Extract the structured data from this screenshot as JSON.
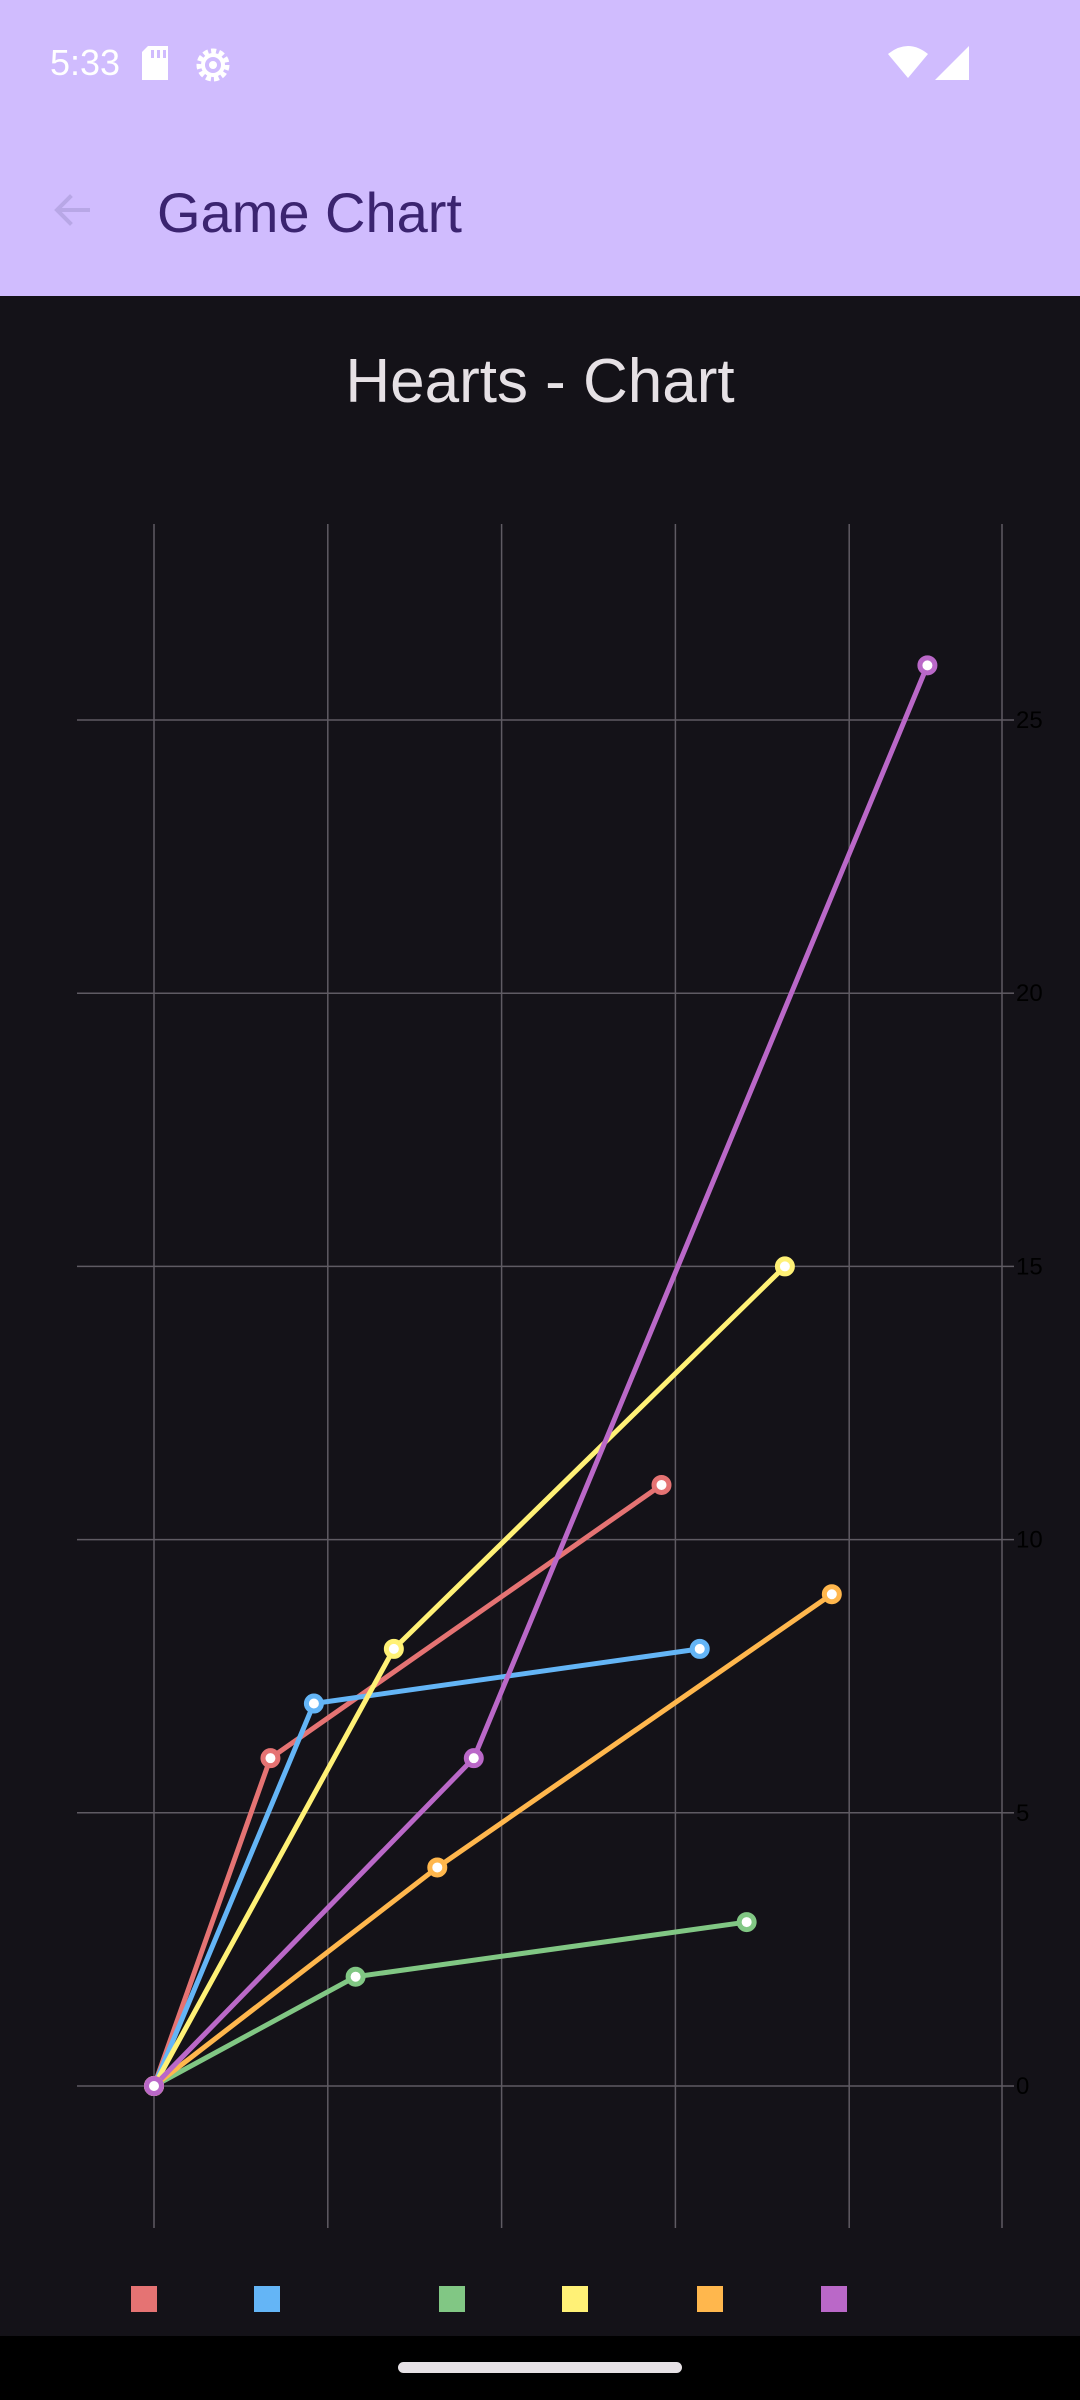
{
  "status_bar": {
    "time": "5:33",
    "icons": [
      "sd-card-icon",
      "gear-icon",
      "wifi-icon",
      "signal-icon"
    ]
  },
  "app_bar": {
    "title": "Game Chart",
    "back_icon": "arrow-back-icon",
    "background": "#d0bcfe",
    "title_color": "#3b2470"
  },
  "chart_data": {
    "type": "line",
    "title": "Hearts - Chart",
    "xlabel": "",
    "ylabel": "",
    "xlim": [
      0,
      5
    ],
    "ylim": [
      -1.2,
      28.4
    ],
    "y_ticks": [
      0,
      5,
      10,
      15,
      20,
      25
    ],
    "y_axis_side": "right",
    "grid": true,
    "legend_placement": "bottom",
    "series": [
      {
        "color": "#e57373",
        "points": [
          [
            0,
            0
          ],
          [
            0.67,
            6
          ],
          [
            2.92,
            11
          ]
        ]
      },
      {
        "color": "#64b5f6",
        "points": [
          [
            0,
            0
          ],
          [
            0.92,
            7
          ],
          [
            3.14,
            8
          ]
        ]
      },
      {
        "color": "#81c784",
        "points": [
          [
            0,
            0
          ],
          [
            1.16,
            2
          ],
          [
            3.41,
            3
          ]
        ]
      },
      {
        "color": "#fff176",
        "points": [
          [
            0,
            0
          ],
          [
            1.38,
            8
          ],
          [
            3.63,
            15
          ]
        ]
      },
      {
        "color": "#ffb74d",
        "points": [
          [
            0,
            0
          ],
          [
            1.63,
            4
          ],
          [
            3.9,
            9
          ]
        ]
      },
      {
        "color": "#ba68c8",
        "points": [
          [
            0,
            0
          ],
          [
            1.84,
            6
          ],
          [
            4.45,
            26
          ]
        ]
      }
    ]
  }
}
